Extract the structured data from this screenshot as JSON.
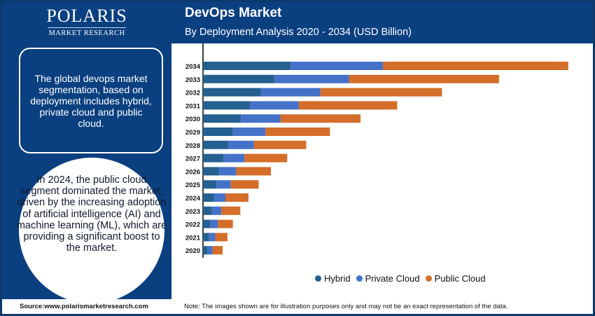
{
  "logo": {
    "name": "POLARIS",
    "tagline": "MARKET RESEARCH"
  },
  "left_panel": {
    "box_text": "The global devops market segmentation, based on deployment includes hybrid, private cloud and public cloud.",
    "circle_text": "In 2024, the public cloud segment dominated the market, driven by the increasing adoption of artificial intelligence (AI) and machine learning (ML), which are providing a significant boost to the market."
  },
  "header": {
    "title": "DevOps Market",
    "subtitle": "By Deployment Analysis 2020 - 2034 (USD Billion)"
  },
  "footer": {
    "source": "Source:www.polarismarketresearch.com",
    "note": "Note: The images shown are for illustration purposes only and may not be an exact representation of the data."
  },
  "chart_data": {
    "type": "bar",
    "orientation": "horizontal",
    "stacked": true,
    "title": "DevOps Market",
    "subtitle": "By Deployment Analysis 2020 - 2034 (USD Billion)",
    "categories": [
      "2034",
      "2033",
      "2032",
      "2031",
      "2030",
      "2029",
      "2028",
      "2027",
      "2026",
      "2025",
      "2024",
      "2023",
      "2022",
      "2021",
      "2020"
    ],
    "series": [
      {
        "name": "Hybrid",
        "color": "#246090",
        "values": [
          12.9,
          10.5,
          8.5,
          6.9,
          5.6,
          4.4,
          3.7,
          3.0,
          2.4,
          2.0,
          1.6,
          1.3,
          1.1,
          0.9,
          0.7
        ]
      },
      {
        "name": "Private Cloud",
        "color": "#4472c8",
        "values": [
          13.6,
          11.0,
          8.8,
          7.2,
          5.8,
          4.8,
          3.8,
          3.1,
          2.5,
          2.1,
          1.7,
          1.4,
          1.1,
          0.9,
          0.7
        ]
      },
      {
        "name": "Public Cloud",
        "color": "#d46e2a",
        "values": [
          27.3,
          22.1,
          17.9,
          14.5,
          11.8,
          9.5,
          7.7,
          6.3,
          5.1,
          4.1,
          3.4,
          2.8,
          2.2,
          1.8,
          1.5
        ]
      }
    ],
    "xaxis_visible": false,
    "grid": false,
    "legend": "bottom"
  }
}
